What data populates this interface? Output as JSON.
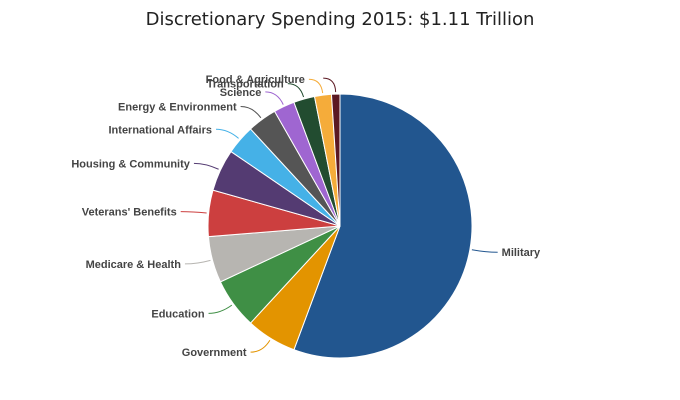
{
  "chart_data": {
    "type": "pie",
    "title": "Discretionary Spending 2015: $1.11 Trillion",
    "slices": [
      {
        "label": "Military",
        "value": 54.0,
        "color": "#22568f"
      },
      {
        "label": "Government",
        "value": 6.0,
        "color": "#e39400"
      },
      {
        "label": "Education",
        "value": 6.0,
        "color": "#3f8f45"
      },
      {
        "label": "Medicare & Health",
        "value": 5.5,
        "color": "#b7b5b1"
      },
      {
        "label": "Veterans' Benefits",
        "value": 5.5,
        "color": "#cc3f3f"
      },
      {
        "label": "Housing & Community",
        "value": 5.0,
        "color": "#543b72"
      },
      {
        "label": "International Affairs",
        "value": 3.5,
        "color": "#45b1e7"
      },
      {
        "label": "Energy & Environment",
        "value": 3.5,
        "color": "#555555"
      },
      {
        "label": "Science",
        "value": 2.5,
        "color": "#9f66d1"
      },
      {
        "label": "Transportation",
        "value": 2.5,
        "color": "#224c30"
      },
      {
        "label": "Food & Agriculture",
        "value": 2.0,
        "color": "#f5ac3a"
      },
      {
        "label": "",
        "value": 1.0,
        "color": "#5b1822"
      }
    ],
    "legend": "none",
    "data_labels": "outside with connector lines"
  }
}
